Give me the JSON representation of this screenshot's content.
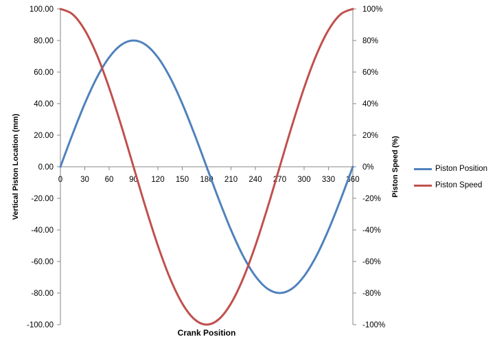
{
  "chart_data": {
    "type": "line",
    "title": "",
    "xlabel": "Crank Position",
    "ylabel_left": "Vertical Piston Location  (mm)",
    "ylabel_right": "Piston Speed (%)",
    "x_ticks": [
      0,
      30,
      60,
      90,
      120,
      150,
      180,
      210,
      240,
      270,
      300,
      330,
      360
    ],
    "xlim": [
      0,
      360
    ],
    "ylim_left": [
      -100,
      100
    ],
    "ylim_right": [
      -100,
      100
    ],
    "y_ticks_left": [
      "100.00",
      "80.00",
      "60.00",
      "40.00",
      "20.00",
      "0.00",
      "-20.00",
      "-40.00",
      "-60.00",
      "-80.00",
      "-100.00"
    ],
    "y_ticks_right": [
      "100%",
      "80%",
      "60%",
      "40%",
      "20%",
      "0%",
      "-20%",
      "-40%",
      "-60%",
      "-80%",
      "-100%"
    ],
    "grid": false,
    "legend_position": "right",
    "x": [
      0,
      15,
      30,
      45,
      60,
      75,
      90,
      105,
      120,
      135,
      150,
      165,
      180,
      195,
      210,
      225,
      240,
      255,
      270,
      285,
      300,
      315,
      330,
      345,
      360
    ],
    "series": [
      {
        "name": "Piston Position",
        "axis": "left",
        "color": "#4F81BD",
        "values": [
          0,
          20.7,
          40,
          56.6,
          69.3,
          77.3,
          80,
          77.3,
          69.3,
          56.6,
          40,
          20.7,
          0,
          -20.7,
          -40,
          -56.6,
          -69.3,
          -77.3,
          -80,
          -77.3,
          -69.3,
          -56.6,
          -40,
          -20.7,
          0
        ]
      },
      {
        "name": "Piston Speed",
        "axis": "right",
        "color": "#C0504D",
        "values": [
          100,
          96.6,
          86.6,
          70.7,
          50,
          25.9,
          0,
          -25.9,
          -50,
          -70.7,
          -86.6,
          -96.6,
          -100,
          -96.6,
          -86.6,
          -70.7,
          -50,
          -25.9,
          0,
          25.9,
          50,
          70.7,
          86.6,
          96.6,
          100
        ]
      }
    ]
  }
}
